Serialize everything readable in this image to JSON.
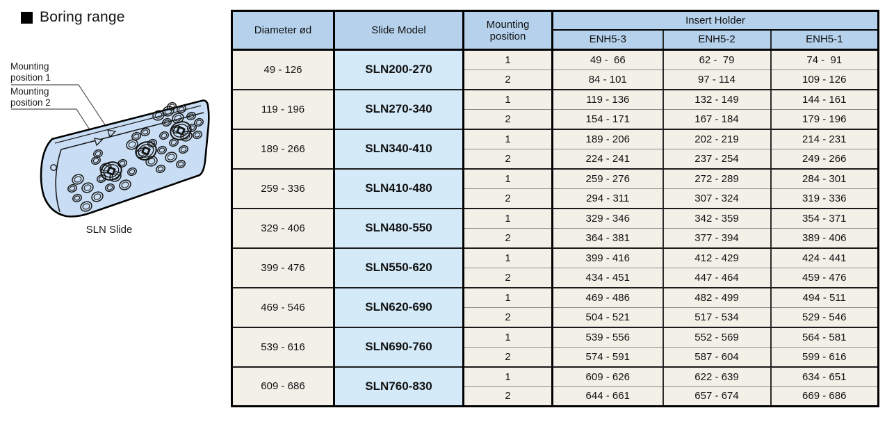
{
  "page": {
    "title": "Boring range"
  },
  "illustration": {
    "caption": "SLN Slide",
    "label1_line1": "Mounting",
    "label1_line2": "position 1",
    "label2_line1": "Mounting",
    "label2_line2": "position 2"
  },
  "colors": {
    "header_bg": "#b5d1ec",
    "model_cell_bg": "#d4eaf9",
    "row_bg": "#f3f0e8",
    "block_fill": "#c9def4",
    "border_black": "#000000"
  },
  "table": {
    "headers": {
      "diameter": "Diameter ød",
      "slide_model": "Slide Model",
      "mounting_position": "Mounting position",
      "insert_holder": "Insert Holder",
      "holder_columns": [
        "ENH5-3",
        "ENH5-2",
        "ENH5-1"
      ]
    },
    "groups": [
      {
        "diameter": "49 - 126",
        "model": "SLN200-270",
        "rows": [
          {
            "position": "1",
            "enh5_3": "49 -  66",
            "enh5_2": "62 -  79",
            "enh5_1": "74 -  91"
          },
          {
            "position": "2",
            "enh5_3": "84 - 101",
            "enh5_2": "97 - 114",
            "enh5_1": "109 - 126"
          }
        ]
      },
      {
        "diameter": "119 - 196",
        "model": "SLN270-340",
        "rows": [
          {
            "position": "1",
            "enh5_3": "119 - 136",
            "enh5_2": "132 - 149",
            "enh5_1": "144 - 161"
          },
          {
            "position": "2",
            "enh5_3": "154 - 171",
            "enh5_2": "167 - 184",
            "enh5_1": "179 - 196"
          }
        ]
      },
      {
        "diameter": "189 - 266",
        "model": "SLN340-410",
        "rows": [
          {
            "position": "1",
            "enh5_3": "189 - 206",
            "enh5_2": "202 - 219",
            "enh5_1": "214 - 231"
          },
          {
            "position": "2",
            "enh5_3": "224 - 241",
            "enh5_2": "237 - 254",
            "enh5_1": "249 - 266"
          }
        ]
      },
      {
        "diameter": "259 - 336",
        "model": "SLN410-480",
        "rows": [
          {
            "position": "1",
            "enh5_3": "259 - 276",
            "enh5_2": "272 - 289",
            "enh5_1": "284 - 301"
          },
          {
            "position": "2",
            "enh5_3": "294 - 311",
            "enh5_2": "307 - 324",
            "enh5_1": "319 - 336"
          }
        ]
      },
      {
        "diameter": "329 - 406",
        "model": "SLN480-550",
        "rows": [
          {
            "position": "1",
            "enh5_3": "329 - 346",
            "enh5_2": "342 - 359",
            "enh5_1": "354 - 371"
          },
          {
            "position": "2",
            "enh5_3": "364 - 381",
            "enh5_2": "377 - 394",
            "enh5_1": "389 - 406"
          }
        ]
      },
      {
        "diameter": "399 - 476",
        "model": "SLN550-620",
        "rows": [
          {
            "position": "1",
            "enh5_3": "399 - 416",
            "enh5_2": "412 - 429",
            "enh5_1": "424 - 441"
          },
          {
            "position": "2",
            "enh5_3": "434 - 451",
            "enh5_2": "447 - 464",
            "enh5_1": "459 - 476"
          }
        ]
      },
      {
        "diameter": "469 - 546",
        "model": "SLN620-690",
        "rows": [
          {
            "position": "1",
            "enh5_3": "469 - 486",
            "enh5_2": "482 - 499",
            "enh5_1": "494 - 511"
          },
          {
            "position": "2",
            "enh5_3": "504 - 521",
            "enh5_2": "517 - 534",
            "enh5_1": "529 - 546"
          }
        ]
      },
      {
        "diameter": "539 - 616",
        "model": "SLN690-760",
        "rows": [
          {
            "position": "1",
            "enh5_3": "539 - 556",
            "enh5_2": "552 - 569",
            "enh5_1": "564 - 581"
          },
          {
            "position": "2",
            "enh5_3": "574 - 591",
            "enh5_2": "587 - 604",
            "enh5_1": "599 - 616"
          }
        ]
      },
      {
        "diameter": "609 - 686",
        "model": "SLN760-830",
        "rows": [
          {
            "position": "1",
            "enh5_3": "609 - 626",
            "enh5_2": "622 - 639",
            "enh5_1": "634 - 651"
          },
          {
            "position": "2",
            "enh5_3": "644 - 661",
            "enh5_2": "657 - 674",
            "enh5_1": "669 - 686"
          }
        ]
      }
    ]
  }
}
